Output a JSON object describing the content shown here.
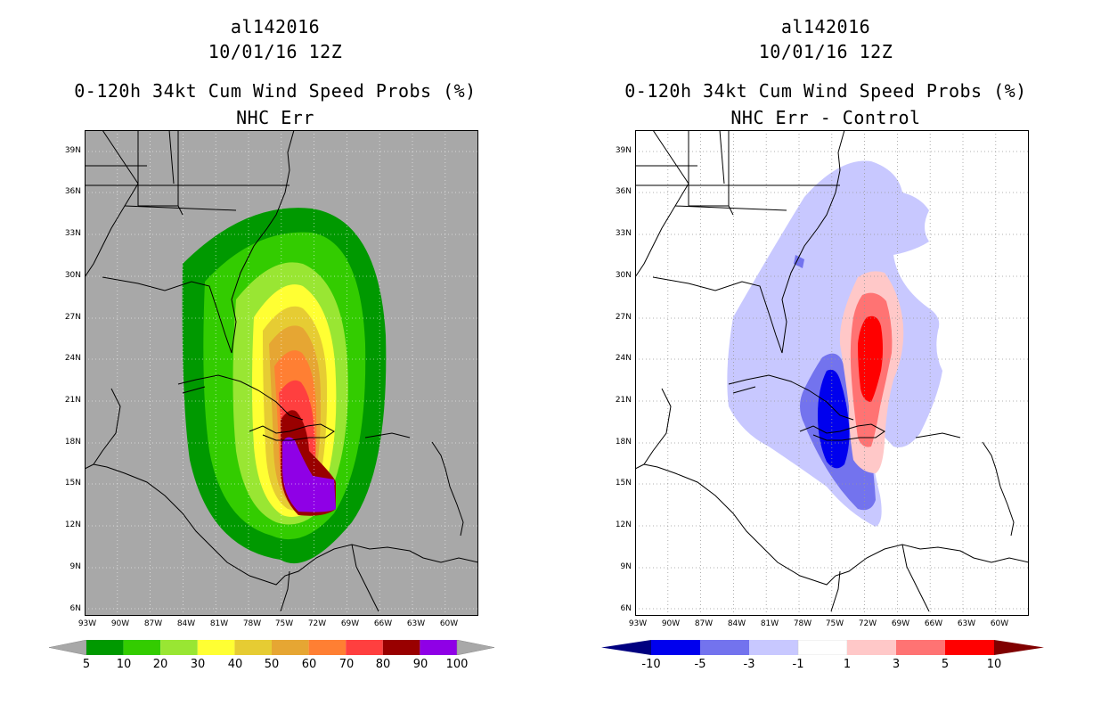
{
  "left": {
    "storm_id": "al142016",
    "datetime": "10/01/16 12Z",
    "title": "0-120h 34kt Cum Wind Speed Probs (%)",
    "subtitle": "NHC Err",
    "colorbar": {
      "labels": [
        "5",
        "10",
        "20",
        "30",
        "40",
        "50",
        "60",
        "70",
        "80",
        "90",
        "100"
      ],
      "colors": [
        "#009900",
        "#33cc00",
        "#99e633",
        "#ffff33",
        "#e6cc33",
        "#e6a633",
        "#ff7f33",
        "#ff3f3f",
        "#990000",
        "#8f00e6"
      ]
    }
  },
  "right": {
    "storm_id": "al142016",
    "datetime": "10/01/16 12Z",
    "title": "0-120h 34kt Cum Wind Speed Probs (%)",
    "subtitle": "NHC Err - Control",
    "colorbar": {
      "labels": [
        "-10",
        "-5",
        "-3",
        "-1",
        "1",
        "3",
        "5",
        "10"
      ],
      "colors": [
        "#0000ee",
        "#7373ee",
        "#c8c8ff",
        "#ffffff",
        "#ffc8c8",
        "#ff7373",
        "#ff0000"
      ]
    }
  },
  "lat_labels": [
    "39N",
    "36N",
    "33N",
    "30N",
    "27N",
    "24N",
    "21N",
    "18N",
    "15N",
    "12N",
    "9N",
    "6N"
  ],
  "lon_labels": [
    "93W",
    "90W",
    "87W",
    "84W",
    "81W",
    "78W",
    "75W",
    "72W",
    "69W",
    "66W",
    "63W",
    "60W"
  ],
  "colors": {
    "map_bg_left": "#a8a8a8",
    "map_bg_right": "#ffffff",
    "coast": "#000000"
  }
}
